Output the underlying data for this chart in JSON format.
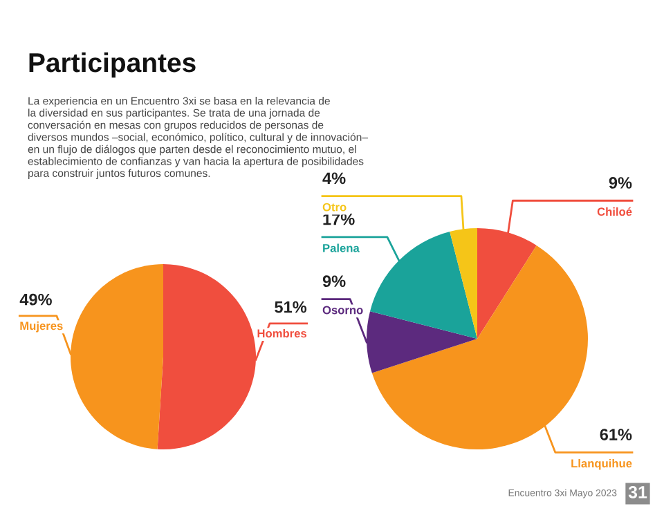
{
  "chart_data": [
    {
      "type": "pie",
      "title": "Participantes",
      "annotations": [
        "La experiencia en un Encuentro 3xi se basa en la relevancia de\nla diversidad en sus participantes. Se trata de una jornada de\nconversación en mesas con grupos reducidos de personas de\ndiversos mundos –social, económico, político, cultural y de innovación–\nen un flujo de diálogos que parten desde el reconocimiento mutuo, el\nestablecimiento de confianzas y van hacia la apertura de posibilidades\npara construir juntos futuros comunes."
      ],
      "categories": [
        "Hombres",
        "Mujeres"
      ],
      "values": [
        51,
        49
      ],
      "value_labels": [
        "51%",
        "49%"
      ],
      "colors": [
        "#f04e3e",
        "#f7941d"
      ],
      "data_labels": true
    },
    {
      "type": "pie",
      "annotations": [
        "Encuentro 3xi Mayo 2023",
        "31"
      ],
      "categories": [
        "Chiloé",
        "Llanquihue",
        "Osorno",
        "Palena",
        "Otro"
      ],
      "values": [
        9,
        61,
        9,
        17,
        4
      ],
      "value_labels": [
        "9%",
        "61%",
        "9%",
        "17%",
        "4%"
      ],
      "colors": [
        "#f04e3e",
        "#f7941d",
        "#5c2a7e",
        "#1aa39a",
        "#f5c518"
      ],
      "data_labels": true
    }
  ]
}
